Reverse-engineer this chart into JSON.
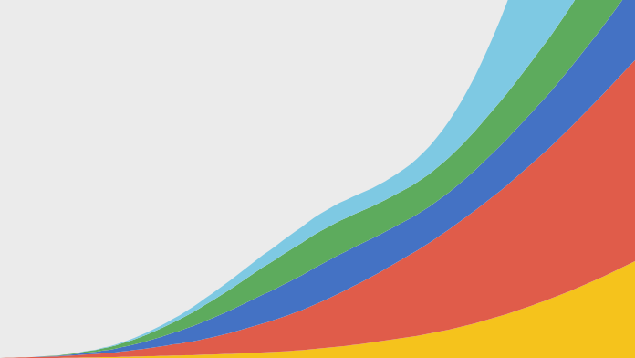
{
  "background_color": "#ebebeb",
  "colors": [
    "#f5c31c",
    "#e05c4a",
    "#4472c4",
    "#5dab5d",
    "#7ec9e3"
  ],
  "figsize": [
    6.96,
    3.92
  ],
  "dpi": 100,
  "series_labels": [
    "yellow",
    "red",
    "blue",
    "green",
    "light_blue"
  ],
  "data": {
    "yellow": [
      0.0,
      0.0,
      0.0,
      0.0,
      0.0,
      0.0,
      0.0,
      0.0,
      0.0,
      0.0,
      0.001,
      0.001,
      0.001,
      0.002,
      0.002,
      0.002,
      0.003,
      0.003,
      0.003,
      0.004,
      0.004,
      0.005,
      0.005,
      0.006,
      0.006,
      0.007,
      0.007,
      0.008,
      0.008,
      0.009,
      0.009,
      0.01,
      0.011,
      0.011,
      0.012,
      0.013,
      0.013,
      0.014,
      0.015,
      0.016,
      0.017,
      0.018,
      0.019,
      0.02,
      0.021,
      0.022,
      0.024,
      0.025,
      0.027,
      0.029,
      0.031,
      0.033,
      0.035,
      0.037,
      0.039,
      0.042,
      0.044,
      0.047,
      0.05,
      0.053,
      0.056,
      0.059,
      0.062,
      0.065,
      0.068,
      0.071,
      0.075,
      0.079,
      0.083,
      0.087,
      0.091,
      0.096,
      0.101,
      0.106,
      0.111,
      0.117,
      0.123,
      0.129,
      0.135,
      0.141,
      0.148,
      0.155,
      0.162,
      0.169,
      0.177,
      0.184,
      0.192,
      0.2,
      0.208,
      0.216,
      0.225,
      0.234,
      0.243,
      0.252,
      0.261,
      0.271,
      0.281,
      0.291,
      0.301,
      0.311
    ],
    "red": [
      0.0,
      0.001,
      0.001,
      0.002,
      0.002,
      0.003,
      0.003,
      0.004,
      0.005,
      0.005,
      0.006,
      0.007,
      0.008,
      0.009,
      0.01,
      0.011,
      0.012,
      0.013,
      0.015,
      0.017,
      0.019,
      0.021,
      0.023,
      0.025,
      0.028,
      0.03,
      0.033,
      0.036,
      0.038,
      0.041,
      0.044,
      0.047,
      0.051,
      0.055,
      0.059,
      0.063,
      0.068,
      0.073,
      0.078,
      0.083,
      0.088,
      0.093,
      0.098,
      0.104,
      0.11,
      0.116,
      0.122,
      0.128,
      0.135,
      0.142,
      0.149,
      0.156,
      0.164,
      0.172,
      0.18,
      0.188,
      0.196,
      0.204,
      0.212,
      0.22,
      0.229,
      0.238,
      0.247,
      0.256,
      0.265,
      0.274,
      0.283,
      0.292,
      0.302,
      0.312,
      0.322,
      0.332,
      0.342,
      0.352,
      0.362,
      0.372,
      0.382,
      0.392,
      0.402,
      0.413,
      0.424,
      0.435,
      0.446,
      0.457,
      0.468,
      0.479,
      0.49,
      0.502,
      0.514,
      0.526,
      0.538,
      0.55,
      0.562,
      0.574,
      0.586,
      0.598,
      0.61,
      0.622,
      0.634,
      0.646
    ],
    "blue": [
      0.0,
      0.0,
      0.0,
      0.0,
      0.0,
      0.0,
      0.001,
      0.001,
      0.001,
      0.002,
      0.002,
      0.003,
      0.004,
      0.005,
      0.006,
      0.007,
      0.009,
      0.01,
      0.012,
      0.014,
      0.016,
      0.018,
      0.021,
      0.024,
      0.027,
      0.03,
      0.034,
      0.037,
      0.041,
      0.045,
      0.049,
      0.053,
      0.057,
      0.061,
      0.065,
      0.069,
      0.073,
      0.077,
      0.081,
      0.085,
      0.089,
      0.093,
      0.096,
      0.099,
      0.103,
      0.106,
      0.109,
      0.112,
      0.115,
      0.118,
      0.12,
      0.122,
      0.123,
      0.124,
      0.124,
      0.124,
      0.124,
      0.123,
      0.122,
      0.121,
      0.12,
      0.119,
      0.118,
      0.117,
      0.116,
      0.116,
      0.116,
      0.116,
      0.117,
      0.118,
      0.119,
      0.121,
      0.123,
      0.126,
      0.129,
      0.133,
      0.137,
      0.141,
      0.145,
      0.149,
      0.153,
      0.157,
      0.161,
      0.165,
      0.169,
      0.173,
      0.177,
      0.182,
      0.187,
      0.192,
      0.197,
      0.202,
      0.207,
      0.212,
      0.218,
      0.224,
      0.23,
      0.236,
      0.242,
      0.248
    ],
    "green": [
      0.0,
      0.0,
      0.0,
      0.0,
      0.0,
      0.0,
      0.0,
      0.001,
      0.001,
      0.001,
      0.002,
      0.002,
      0.003,
      0.004,
      0.005,
      0.006,
      0.007,
      0.009,
      0.01,
      0.012,
      0.014,
      0.016,
      0.019,
      0.021,
      0.024,
      0.027,
      0.03,
      0.033,
      0.037,
      0.04,
      0.044,
      0.048,
      0.052,
      0.056,
      0.06,
      0.064,
      0.068,
      0.072,
      0.076,
      0.08,
      0.084,
      0.088,
      0.091,
      0.094,
      0.097,
      0.1,
      0.102,
      0.104,
      0.106,
      0.107,
      0.108,
      0.108,
      0.108,
      0.108,
      0.107,
      0.106,
      0.105,
      0.104,
      0.103,
      0.103,
      0.102,
      0.102,
      0.102,
      0.102,
      0.102,
      0.103,
      0.104,
      0.105,
      0.107,
      0.109,
      0.112,
      0.115,
      0.118,
      0.122,
      0.126,
      0.13,
      0.134,
      0.138,
      0.142,
      0.146,
      0.15,
      0.155,
      0.16,
      0.165,
      0.17,
      0.175,
      0.18,
      0.185,
      0.19,
      0.196,
      0.202,
      0.208,
      0.214,
      0.22,
      0.226,
      0.232,
      0.238,
      0.244,
      0.25,
      0.256
    ],
    "light_blue": [
      0.0,
      0.0,
      0.0,
      0.0,
      0.0,
      0.0,
      0.0,
      0.0,
      0.0,
      0.0,
      0.0,
      0.0,
      0.0,
      0.001,
      0.001,
      0.001,
      0.002,
      0.002,
      0.003,
      0.003,
      0.004,
      0.005,
      0.006,
      0.007,
      0.008,
      0.009,
      0.01,
      0.012,
      0.013,
      0.015,
      0.017,
      0.019,
      0.021,
      0.023,
      0.025,
      0.027,
      0.029,
      0.031,
      0.033,
      0.035,
      0.037,
      0.039,
      0.041,
      0.043,
      0.045,
      0.047,
      0.049,
      0.051,
      0.053,
      0.055,
      0.056,
      0.057,
      0.058,
      0.058,
      0.058,
      0.058,
      0.058,
      0.058,
      0.058,
      0.059,
      0.06,
      0.062,
      0.064,
      0.067,
      0.071,
      0.076,
      0.082,
      0.089,
      0.097,
      0.106,
      0.117,
      0.129,
      0.143,
      0.158,
      0.175,
      0.194,
      0.215,
      0.238,
      0.263,
      0.291,
      0.321,
      0.354,
      0.39,
      0.429,
      0.471,
      0.517,
      0.566,
      0.619,
      0.676,
      0.737,
      0.802,
      0.871,
      0.944,
      1.021,
      1.102,
      1.187,
      1.277,
      1.371,
      1.469,
      1.572
    ]
  }
}
